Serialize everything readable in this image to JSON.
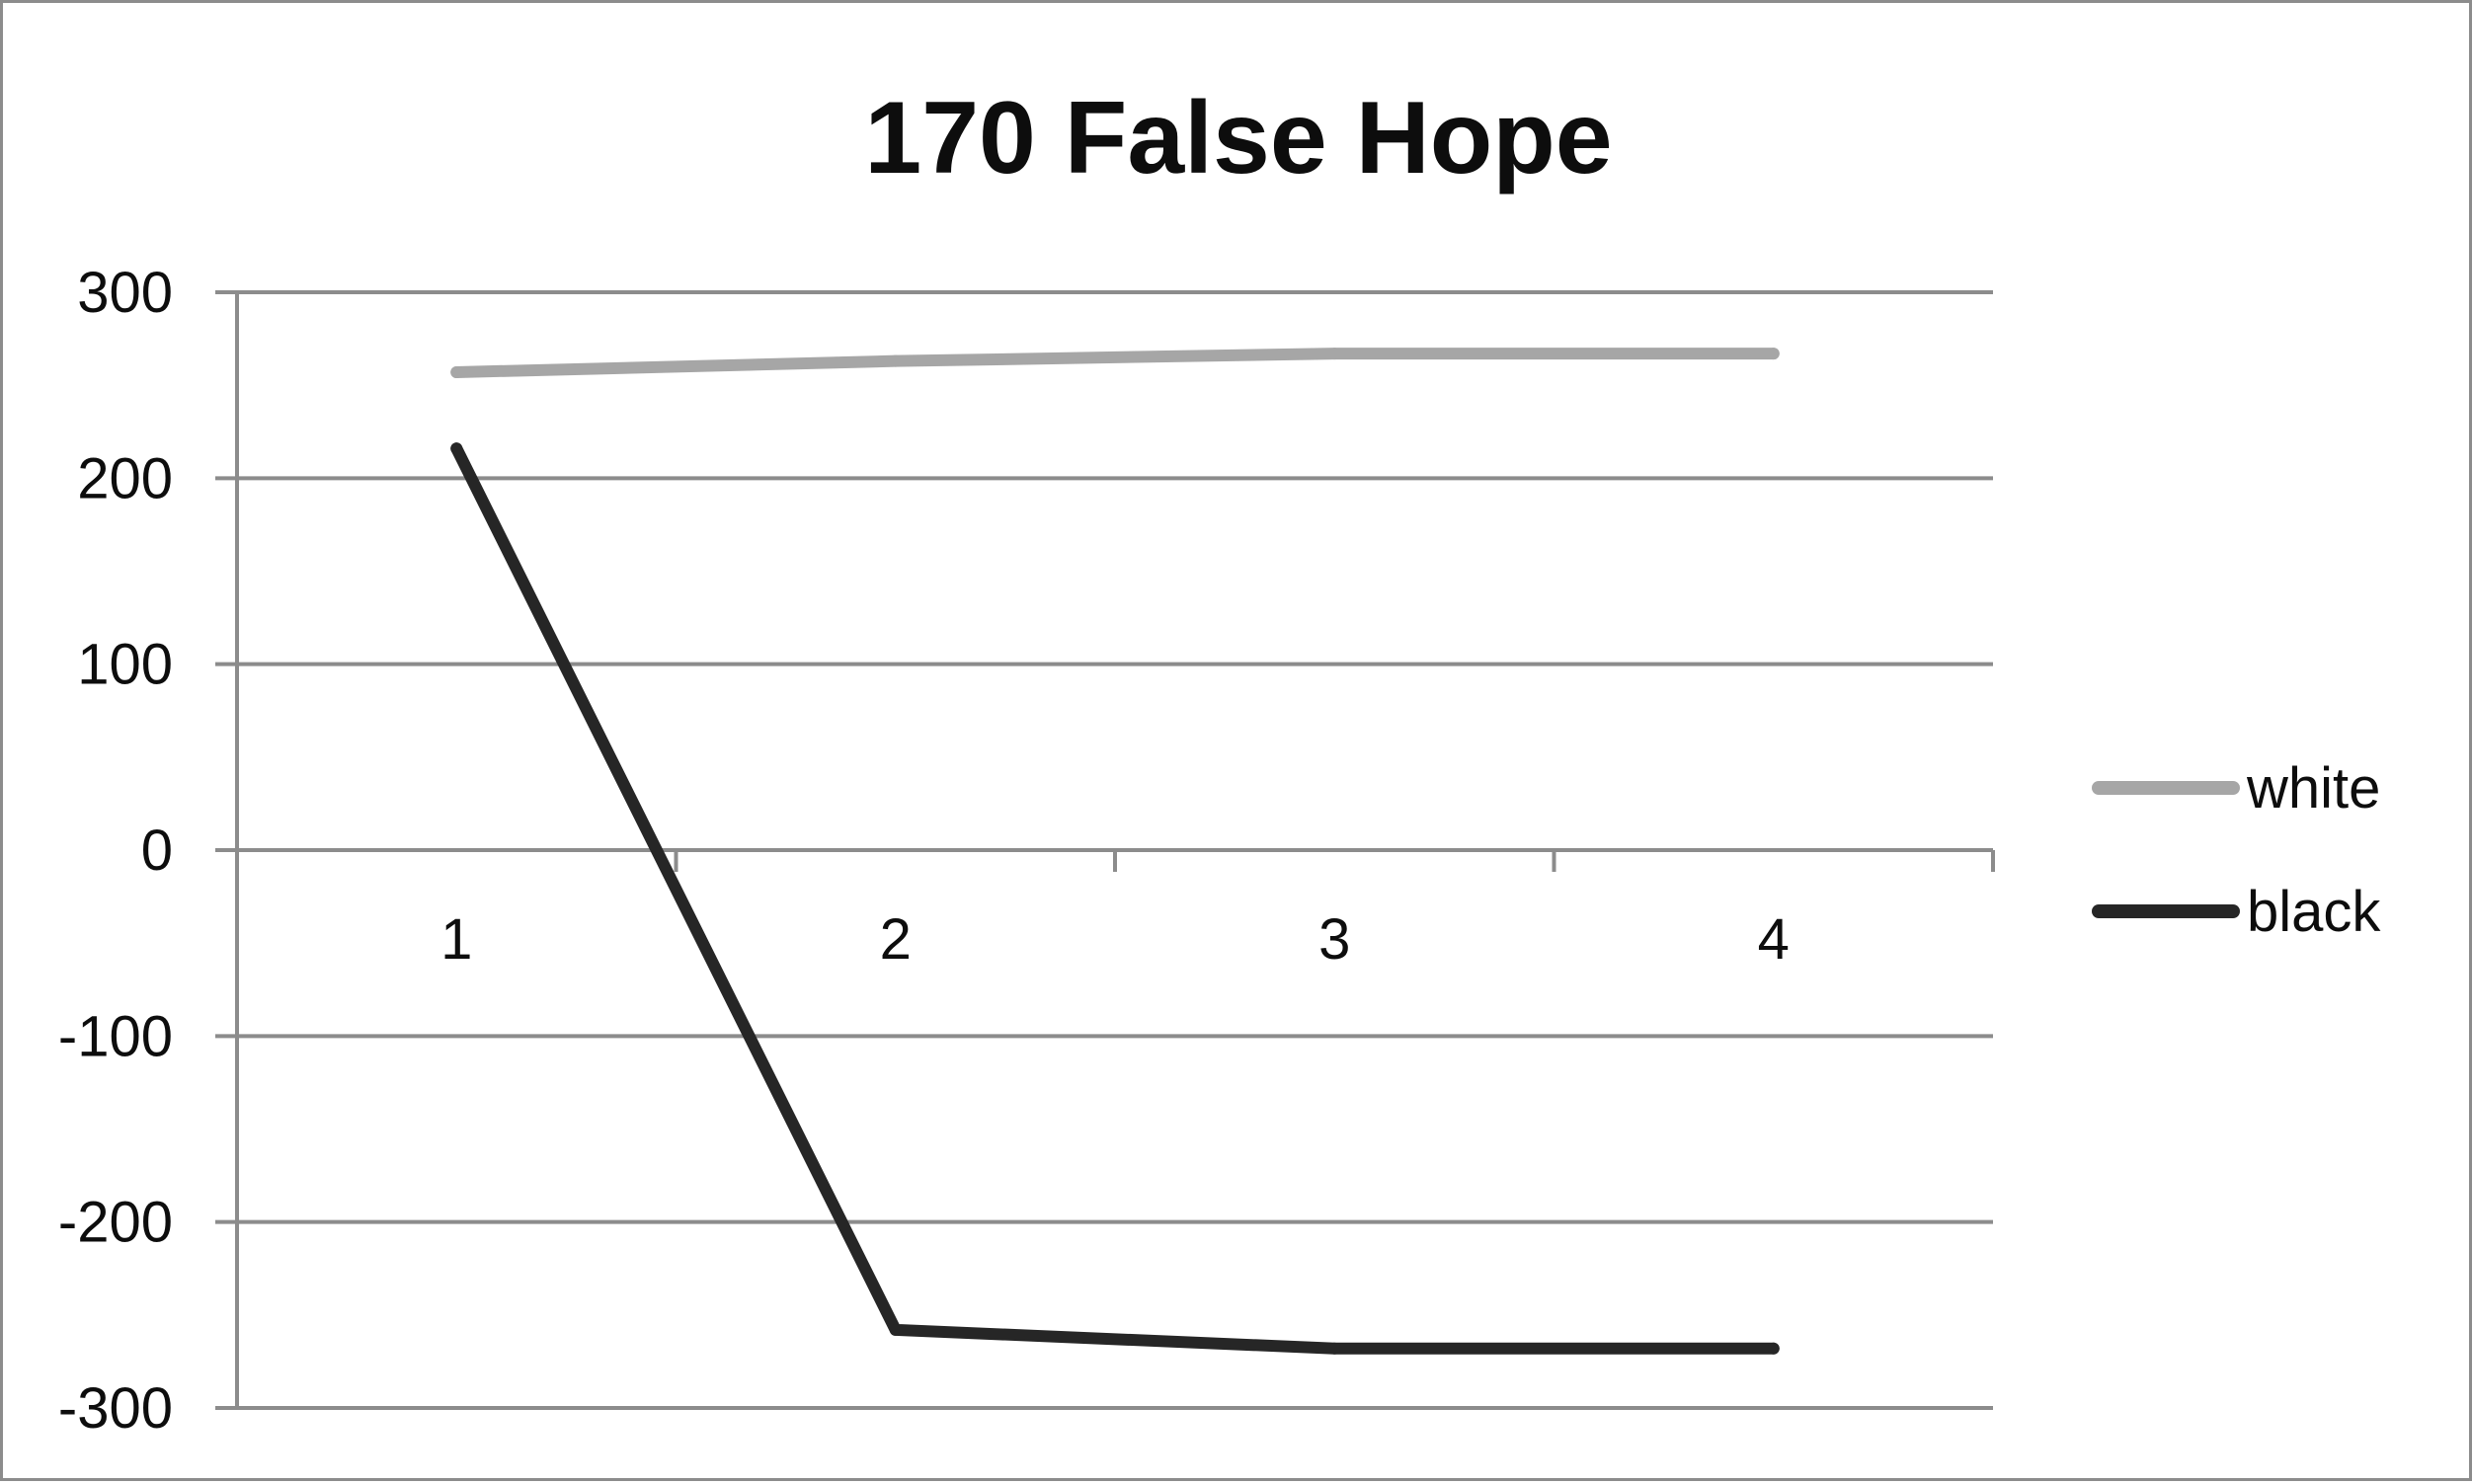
{
  "chart_data": {
    "type": "line",
    "title": "170 False Hope",
    "xlabel": "",
    "ylabel": "",
    "categories": [
      "1",
      "2",
      "3",
      "4"
    ],
    "ylim": [
      -300,
      300
    ],
    "yticks": [
      300,
      200,
      100,
      0,
      -100,
      -200,
      -300
    ],
    "ytick_labels": [
      "300",
      "200",
      "100",
      "0",
      "-100",
      "-200",
      "-300"
    ],
    "grid": true,
    "legend_position": "right",
    "series": [
      {
        "name": "white",
        "values": [
          257,
          263,
          267,
          267
        ],
        "color": "#a6a6a6"
      },
      {
        "name": "black",
        "values": [
          216,
          -258,
          -268,
          -268
        ],
        "color": "#262626"
      }
    ]
  }
}
